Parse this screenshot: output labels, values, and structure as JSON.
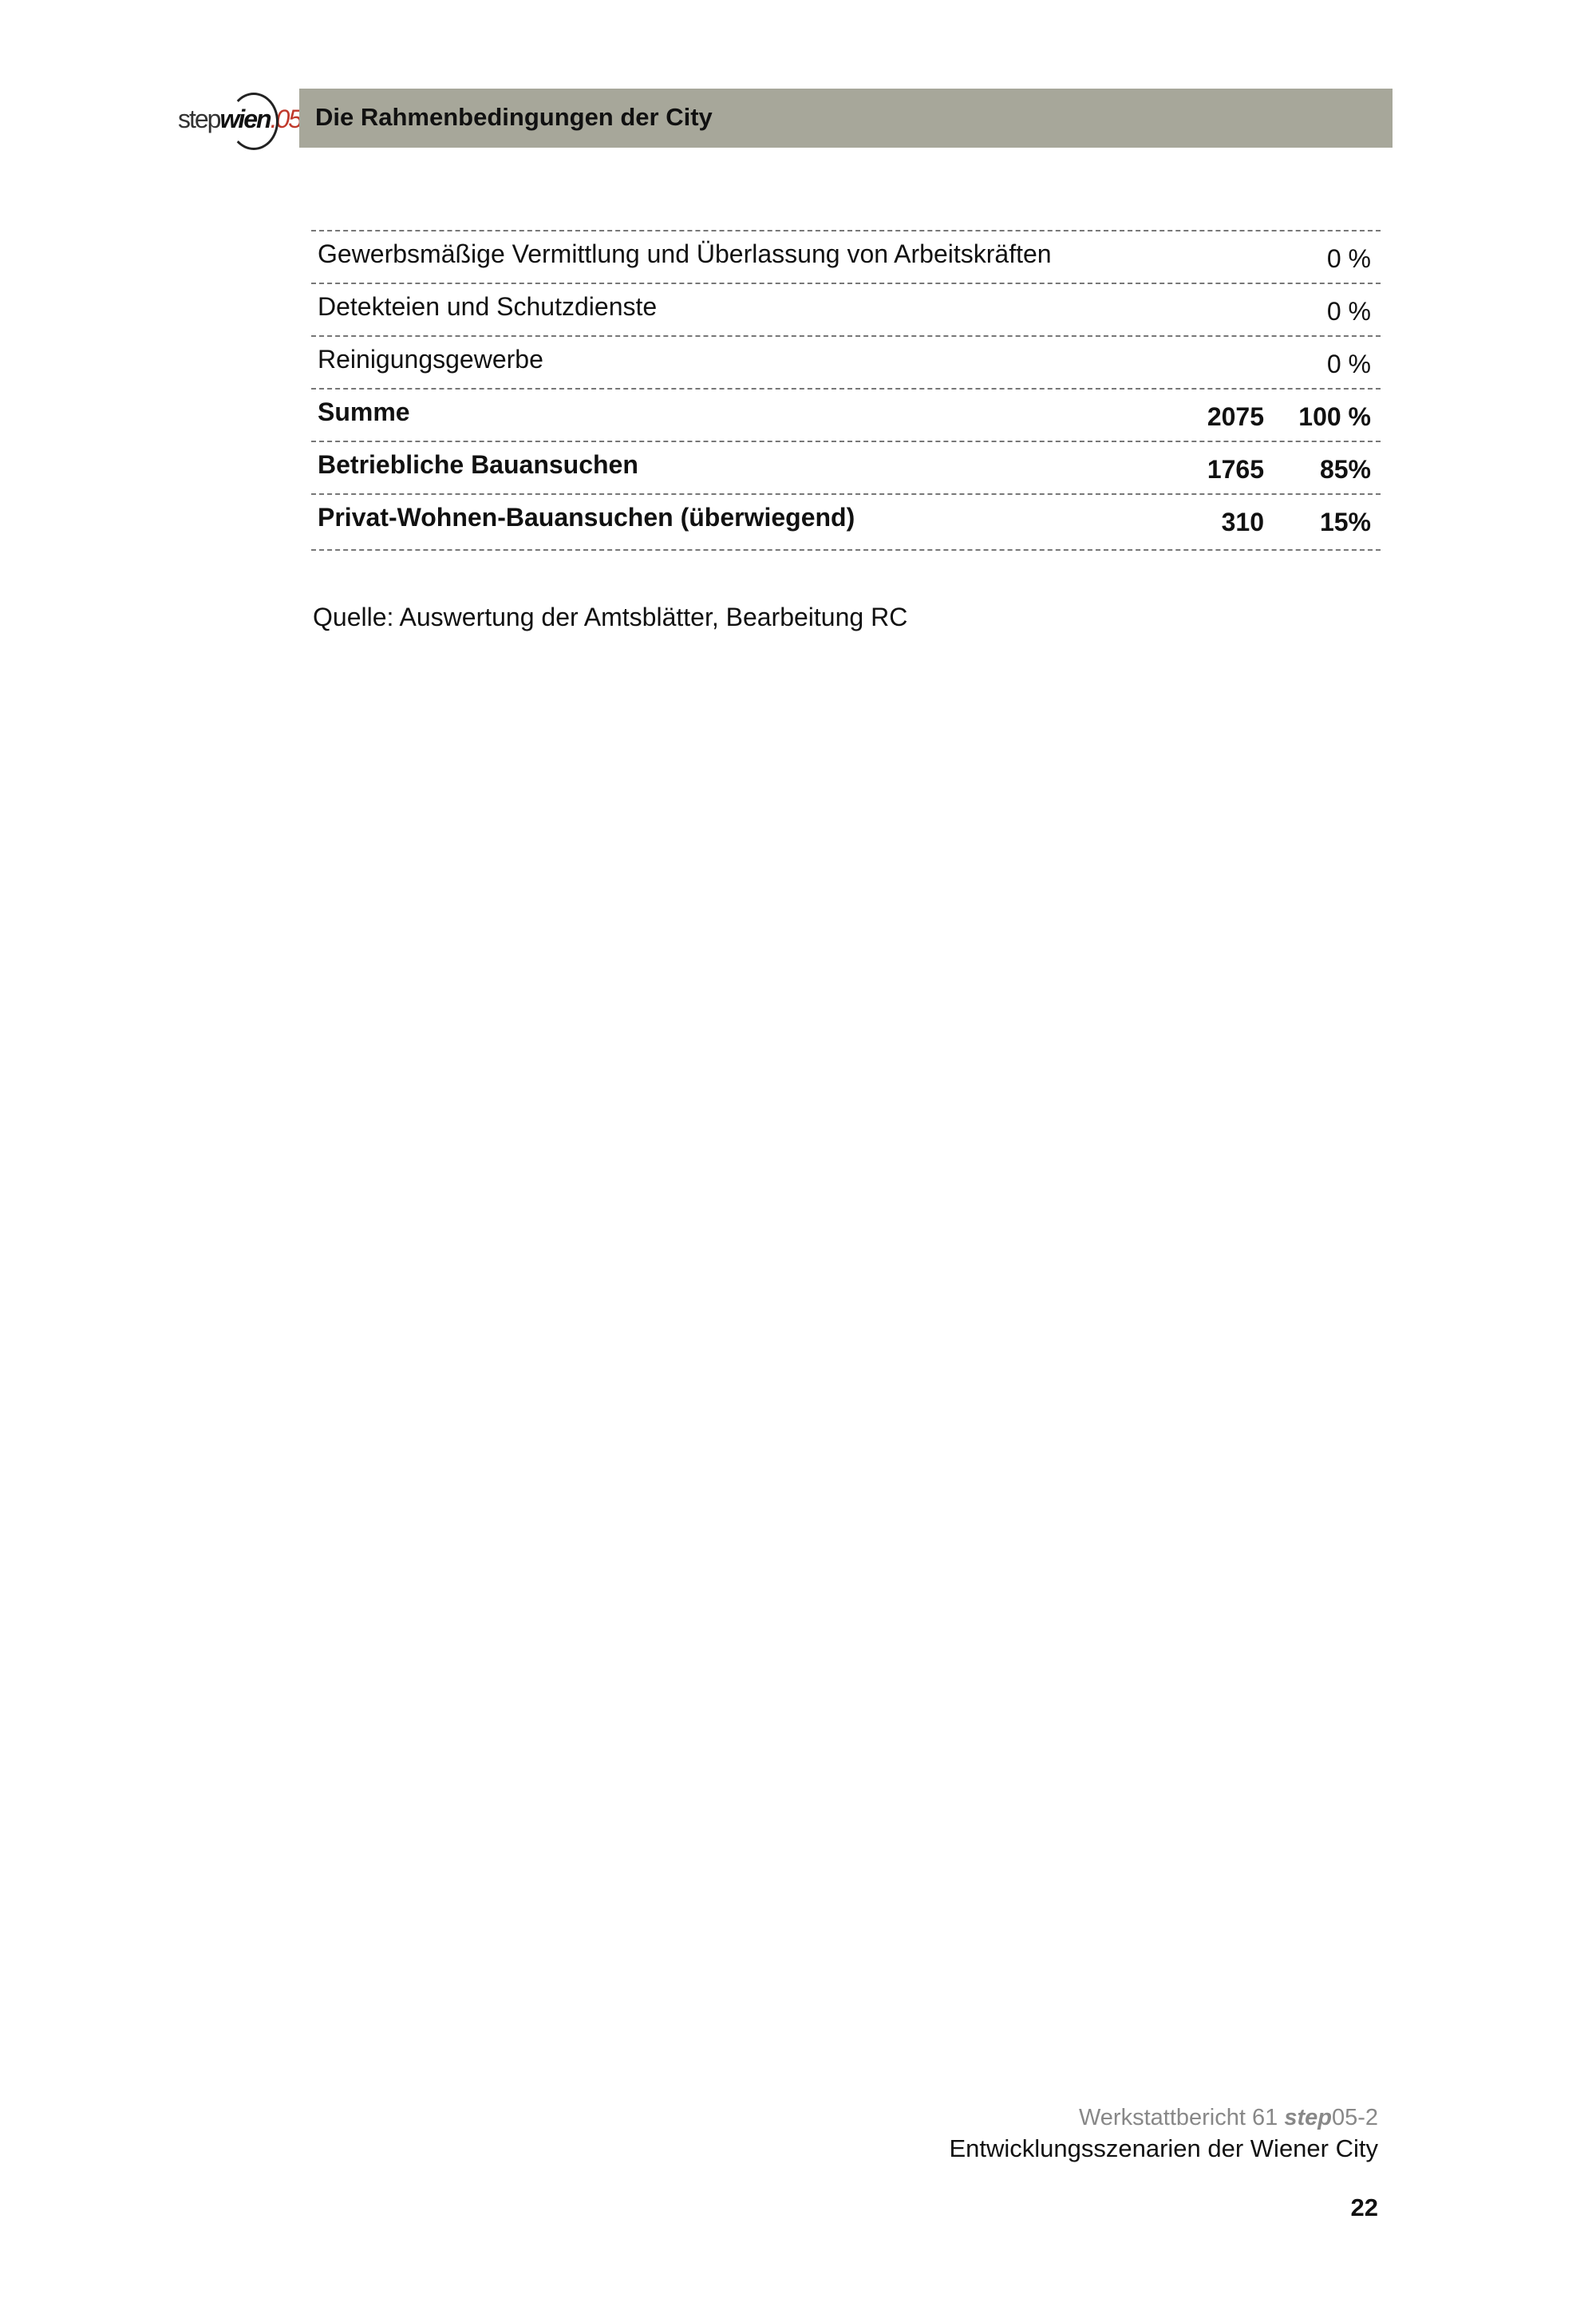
{
  "header": {
    "logo": {
      "step": "step",
      "wien": "wien",
      "num": ".05"
    },
    "title": "Die Rahmenbedingungen der City",
    "bar_color": "#a7a79a"
  },
  "table": {
    "rows": [
      {
        "label": "Gewerbsmäßige Vermittlung und Überlassung von Arbeitskräften",
        "count": "",
        "percent": "0 %",
        "bold": false
      },
      {
        "label": "Detekteien und Schutzdienste",
        "count": "",
        "percent": "0 %",
        "bold": false
      },
      {
        "label": "Reinigungsgewerbe",
        "count": "",
        "percent": "0 %",
        "bold": false
      },
      {
        "label": "Summe",
        "count": "2075",
        "percent": "100 %",
        "bold": true
      },
      {
        "label": "Betriebliche Bauansuchen",
        "count": "1765",
        "percent": "85%",
        "bold": true
      },
      {
        "label": "Privat-Wohnen-Bauansuchen (überwiegend)",
        "count": "310",
        "percent": "15%",
        "bold": true
      }
    ]
  },
  "source": "Quelle: Auswertung der Amtsblätter, Bearbeitung RC",
  "footer": {
    "series_prefix": "Werkstattbericht 61 ",
    "series_step": "step",
    "series_suffix": "05-2",
    "subtitle": "Entwicklungsszenarien der Wiener City",
    "page_number": "22"
  }
}
